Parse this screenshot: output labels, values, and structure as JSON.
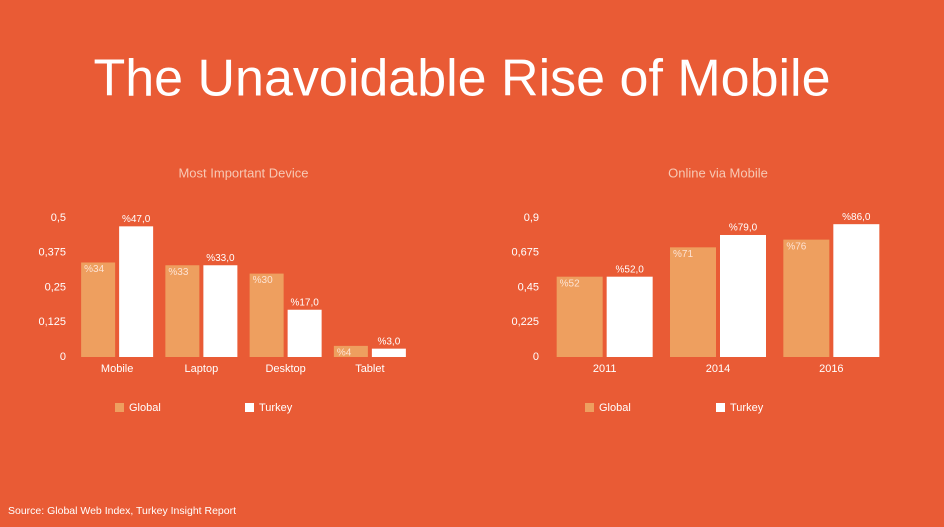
{
  "title": "The Unavoidable Rise of Mobile",
  "source": "Source: Global Web Index, Turkey Insight Report",
  "chart_data": [
    {
      "type": "bar",
      "title": "Most Important Device",
      "categories": [
        "Mobile",
        "Laptop",
        "Desktop",
        "Tablet"
      ],
      "series": [
        {
          "name": "Global",
          "color": "#ee9f5f",
          "values": [
            0.34,
            0.33,
            0.3,
            0.04
          ],
          "value_labels": [
            "%34",
            "%33",
            "%30",
            "%4"
          ]
        },
        {
          "name": "Turkey",
          "color": "#ffffff",
          "values": [
            0.47,
            0.33,
            0.17,
            0.03
          ],
          "value_labels": [
            "%47,0",
            "%33,0",
            "%17,0",
            "%3,0"
          ]
        }
      ],
      "ylim": [
        0,
        0.5
      ],
      "yticks": [
        0,
        {
          "value": 0.125,
          "label": "0,125"
        },
        {
          "value": 0.25,
          "label": "0,25"
        },
        {
          "value": 0.375,
          "label": "0,375"
        },
        {
          "value": 0.5,
          "label": "0,5"
        }
      ],
      "legend": "bottom"
    },
    {
      "type": "bar",
      "title": "Online via Mobile",
      "categories": [
        "2011",
        "2014",
        "2016"
      ],
      "series": [
        {
          "name": "Global",
          "color": "#ee9f5f",
          "values": [
            0.52,
            0.71,
            0.76
          ],
          "value_labels": [
            "%52",
            "%71",
            "%76"
          ]
        },
        {
          "name": "Turkey",
          "color": "#ffffff",
          "values": [
            0.52,
            0.79,
            0.86
          ],
          "value_labels": [
            "%52,0",
            "%79,0",
            "%86,0"
          ]
        }
      ],
      "ylim": [
        0,
        0.9
      ],
      "yticks": [
        0,
        {
          "value": 0.225,
          "label": "0,225"
        },
        {
          "value": 0.45,
          "label": "0,45"
        },
        {
          "value": 0.675,
          "label": "0,675"
        },
        {
          "value": 0.9,
          "label": "0,9"
        }
      ],
      "legend": "bottom"
    }
  ]
}
